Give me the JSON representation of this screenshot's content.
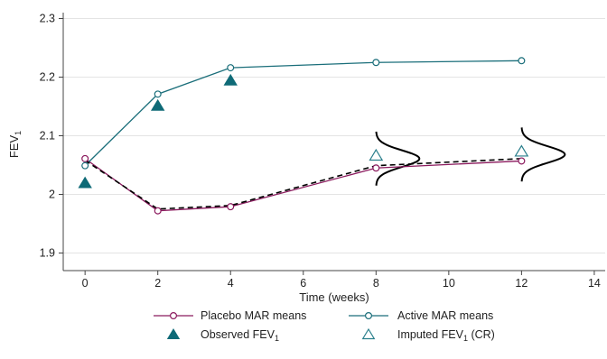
{
  "chart_data": {
    "type": "line",
    "title": "",
    "xlabel": "Time (weeks)",
    "ylabel": "FEV",
    "ylabel_sub": "1",
    "xlim": [
      -0.6,
      14.3
    ],
    "ylim": [
      1.87,
      2.31
    ],
    "x_ticks": [
      0,
      2,
      4,
      6,
      8,
      10,
      12,
      14
    ],
    "x_tick_labels": [
      "0",
      "2",
      "4",
      "6",
      "8",
      "10",
      "12",
      "14"
    ],
    "y_ticks": [
      1.9,
      2.0,
      2.1,
      2.2,
      2.3
    ],
    "y_tick_labels": [
      "1.9",
      "2",
      "2.1",
      "2.2",
      "2.3"
    ],
    "grid": "horizontal",
    "legend_position": "bottom",
    "colors": {
      "placebo": "#8b1a5e",
      "active": "#1a6e7a",
      "observed": "#0e6a77",
      "imputed": "#2a7f8c",
      "dashed": "#000000",
      "curve": "#000000",
      "grid": "#e4e4e4",
      "axis": "#444444"
    },
    "series": [
      {
        "name": "Placebo MAR means",
        "style": "line-circle",
        "x": [
          0,
          2,
          4,
          8,
          12
        ],
        "y": [
          2.061,
          1.972,
          1.979,
          2.045,
          2.057
        ]
      },
      {
        "name": "Active MAR means",
        "style": "line-circle",
        "x": [
          0,
          2,
          4,
          8,
          12
        ],
        "y": [
          2.049,
          2.171,
          2.216,
          2.225,
          2.228
        ]
      },
      {
        "name": "Observed FEV",
        "name_sub": "1",
        "style": "filled-triangle",
        "x": [
          0,
          2,
          4
        ],
        "y": [
          2.019,
          2.151,
          2.194
        ]
      },
      {
        "name": "Imputed FEV",
        "name_sub": "1",
        "name_suffix": " (CR)",
        "style": "open-triangle",
        "x": [
          8,
          12
        ],
        "y": [
          2.066,
          2.073
        ]
      },
      {
        "name": "",
        "style": "dashed",
        "x": [
          0,
          2,
          4,
          8,
          12
        ],
        "y": [
          2.058,
          1.975,
          1.981,
          2.049,
          2.061
        ]
      }
    ],
    "distributions": [
      {
        "x": 8,
        "mean": 2.061,
        "sd": 0.014,
        "ymin": 2.015,
        "ymax": 2.107
      },
      {
        "x": 12,
        "mean": 2.068,
        "sd": 0.014,
        "ymin": 2.022,
        "ymax": 2.114
      }
    ]
  }
}
